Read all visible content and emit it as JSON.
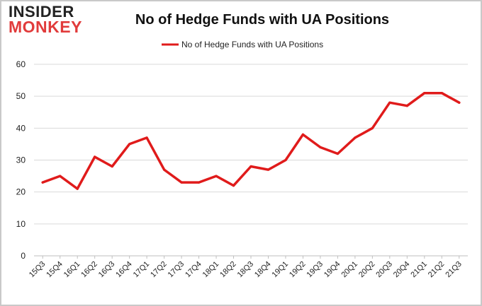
{
  "logo": {
    "line1": "INSIDER",
    "line2": "MONKEY"
  },
  "chart_data": {
    "type": "line",
    "title": "No of Hedge Funds with UA Positions",
    "xlabel": "",
    "ylabel": "",
    "categories": [
      "15Q3",
      "15Q4",
      "16Q1",
      "16Q2",
      "16Q3",
      "16Q4",
      "17Q1",
      "17Q2",
      "17Q3",
      "17Q4",
      "18Q1",
      "18Q2",
      "18Q3",
      "18Q4",
      "19Q1",
      "19Q2",
      "19Q3",
      "19Q4",
      "20Q1",
      "20Q2",
      "20Q3",
      "20Q4",
      "21Q1",
      "21Q2",
      "21Q3"
    ],
    "series": [
      {
        "name": "No of Hedge Funds with UA Positions",
        "color": "#e01b1b",
        "values": [
          23,
          25,
          21,
          31,
          28,
          35,
          37,
          27,
          23,
          23,
          25,
          22,
          28,
          27,
          30,
          38,
          34,
          32,
          37,
          40,
          48,
          47,
          51,
          51,
          48
        ]
      }
    ],
    "ylim": [
      0,
      60
    ],
    "yticks": [
      0,
      10,
      20,
      30,
      40,
      50,
      60
    ],
    "grid": true,
    "legend_position": "top-center"
  }
}
